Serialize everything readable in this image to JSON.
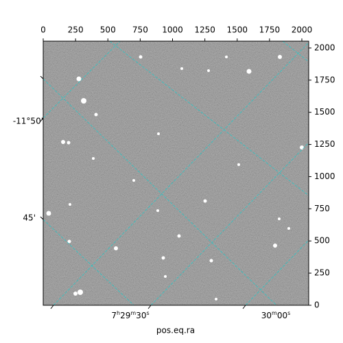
{
  "chart_data": {
    "type": "image",
    "xlabel": "pos.eq.ra",
    "xlim": [
      0,
      2053
    ],
    "xticks": [
      0,
      250,
      500,
      750,
      1000,
      1250,
      1500,
      1750,
      2000
    ],
    "ylim": [
      0,
      2053
    ],
    "yticks": [
      0,
      250,
      500,
      750,
      1000,
      1250,
      1500,
      1750,
      2000
    ],
    "ra_labels": [
      "7h29m30s",
      "30m00s"
    ],
    "dec_labels": [
      "-11°50'",
      "45'"
    ],
    "grid": true,
    "grid_color": "#2ec4c4"
  }
}
